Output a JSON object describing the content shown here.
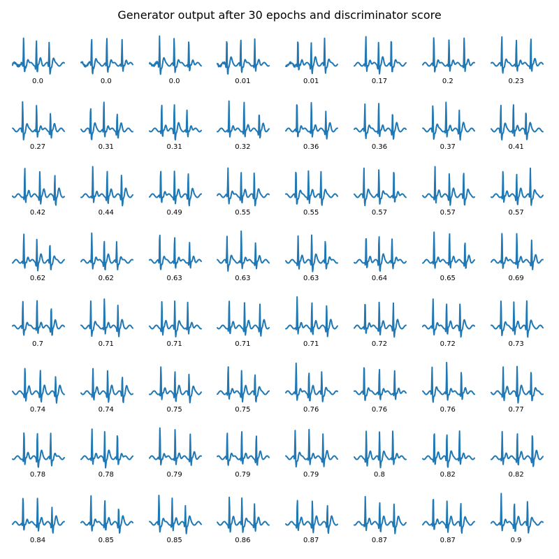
{
  "title": "Generator output after 30 epochs and discriminator score",
  "colors": {
    "line": "#1f77b4"
  },
  "chart_data": {
    "type": "line",
    "title": "Generator output after 30 epochs and discriminator score",
    "grid": false,
    "axes_visible": false,
    "rows": 8,
    "cols": 8,
    "panels": [
      {
        "score": "0.0"
      },
      {
        "score": "0.0"
      },
      {
        "score": "0.0"
      },
      {
        "score": "0.01"
      },
      {
        "score": "0.01"
      },
      {
        "score": "0.17"
      },
      {
        "score": "0.2"
      },
      {
        "score": "0.23"
      },
      {
        "score": "0.27"
      },
      {
        "score": "0.31"
      },
      {
        "score": "0.31"
      },
      {
        "score": "0.32"
      },
      {
        "score": "0.36"
      },
      {
        "score": "0.36"
      },
      {
        "score": "0.37"
      },
      {
        "score": "0.41"
      },
      {
        "score": "0.42"
      },
      {
        "score": "0.44"
      },
      {
        "score": "0.49"
      },
      {
        "score": "0.55"
      },
      {
        "score": "0.55"
      },
      {
        "score": "0.57"
      },
      {
        "score": "0.57"
      },
      {
        "score": "0.57"
      },
      {
        "score": "0.62"
      },
      {
        "score": "0.62"
      },
      {
        "score": "0.63"
      },
      {
        "score": "0.63"
      },
      {
        "score": "0.63"
      },
      {
        "score": "0.64"
      },
      {
        "score": "0.65"
      },
      {
        "score": "0.69"
      },
      {
        "score": "0.7"
      },
      {
        "score": "0.71"
      },
      {
        "score": "0.71"
      },
      {
        "score": "0.71"
      },
      {
        "score": "0.71"
      },
      {
        "score": "0.72"
      },
      {
        "score": "0.72"
      },
      {
        "score": "0.73"
      },
      {
        "score": "0.74"
      },
      {
        "score": "0.74"
      },
      {
        "score": "0.75"
      },
      {
        "score": "0.75"
      },
      {
        "score": "0.76"
      },
      {
        "score": "0.76"
      },
      {
        "score": "0.76"
      },
      {
        "score": "0.77"
      },
      {
        "score": "0.78"
      },
      {
        "score": "0.78"
      },
      {
        "score": "0.79"
      },
      {
        "score": "0.79"
      },
      {
        "score": "0.79"
      },
      {
        "score": "0.8"
      },
      {
        "score": "0.82"
      },
      {
        "score": "0.82"
      },
      {
        "score": "0.84"
      },
      {
        "score": "0.85"
      },
      {
        "score": "0.85"
      },
      {
        "score": "0.86"
      },
      {
        "score": "0.87"
      },
      {
        "score": "0.87"
      },
      {
        "score": "0.87"
      },
      {
        "score": "0.9"
      }
    ]
  }
}
